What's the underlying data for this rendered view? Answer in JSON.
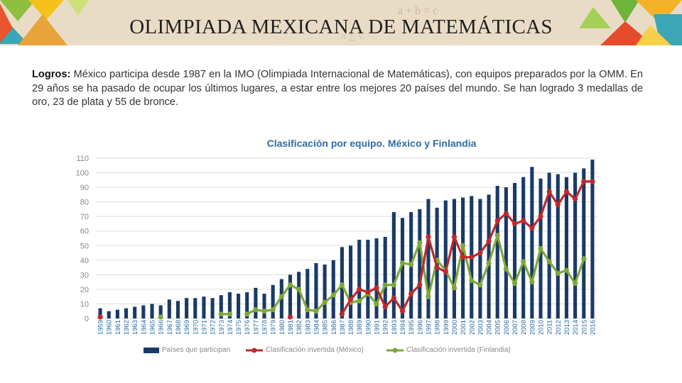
{
  "page": {
    "title": "OLIMPIADA MEXICANA DE MATEMÁTICAS",
    "description_label": "Logros:",
    "description_text": " México participa desde 1987 en la IMO (Olimpiada Internacional de Matemáticas), con equipos preparados por la OMM. En 29 años se ha pasado de ocupar los últimos lugares, a estar entre los mejores 20 países del mundo. Se han logrado 3 medallas de oro, 23 de plata y 55 de bronce."
  },
  "chart_data": {
    "type": "bar",
    "title": "Clasificación por equipo. México y Finlandia",
    "ylim": [
      0,
      110
    ],
    "yticks": [
      0,
      10,
      20,
      30,
      40,
      50,
      60,
      70,
      80,
      90,
      100,
      110
    ],
    "grid": true,
    "legend_position": "bottom",
    "colors": {
      "bars": "#1a3a66",
      "mexico": "#c0282d",
      "finland": "#7ca83b",
      "grid": "#dddddd",
      "ticks": "#888888"
    },
    "categories": [
      "1959",
      "1960",
      "1961",
      "1962",
      "1963",
      "1964",
      "1965",
      "1966",
      "1967",
      "1968",
      "1969",
      "1970",
      "1971",
      "1972",
      "1973",
      "1974",
      "1975",
      "1976",
      "1977",
      "1978",
      "1979",
      "1980",
      "1981",
      "1982",
      "1983",
      "1984",
      "1985",
      "1986",
      "1987",
      "1988",
      "1989",
      "1990",
      "1991",
      "1992",
      "1993",
      "1994",
      "1995",
      "1996",
      "1997",
      "1998",
      "1999",
      "2000",
      "2001",
      "2002",
      "2003",
      "2004",
      "2005",
      "2006",
      "2007",
      "2008",
      "2009",
      "2010",
      "2011",
      "2012",
      "2013",
      "2014",
      "2015",
      "2016"
    ],
    "series": [
      {
        "name": "Países que participan",
        "kind": "bar",
        "values": [
          7,
          5,
          6,
          7,
          8,
          9,
          10,
          9,
          13,
          12,
          14,
          14,
          15,
          14,
          16,
          18,
          17,
          18,
          21,
          17,
          23,
          27,
          30,
          32,
          34,
          38,
          37,
          40,
          49,
          50,
          54,
          54,
          55,
          56,
          73,
          69,
          73,
          75,
          82,
          76,
          81,
          82,
          83,
          84,
          82,
          85,
          91,
          90,
          93,
          97,
          104,
          96,
          100,
          99,
          97,
          100,
          103,
          109
        ]
      },
      {
        "name": "Clasificación invertida (México)",
        "kind": "line",
        "values": [
          1,
          null,
          null,
          null,
          null,
          null,
          null,
          null,
          null,
          null,
          null,
          null,
          null,
          null,
          null,
          null,
          null,
          null,
          null,
          null,
          null,
          null,
          1,
          null,
          null,
          null,
          null,
          null,
          3,
          13,
          20,
          18,
          21,
          8,
          14,
          5,
          17,
          23,
          56,
          35,
          32,
          56,
          42,
          42,
          45,
          53,
          67,
          72,
          65,
          67,
          62,
          70,
          87,
          78,
          87,
          82,
          94,
          94
        ]
      },
      {
        "name": "Clasificación invertida (Finlandia)",
        "kind": "line",
        "values": [
          null,
          null,
          null,
          null,
          null,
          null,
          null,
          1,
          null,
          null,
          null,
          null,
          null,
          null,
          3,
          3,
          null,
          3,
          6,
          5,
          6,
          15,
          23,
          20,
          6,
          5,
          11,
          16,
          23,
          11,
          12,
          17,
          10,
          23,
          23,
          38,
          37,
          52,
          15,
          40,
          33,
          21,
          50,
          26,
          23,
          38,
          57,
          34,
          24,
          39,
          25,
          48,
          39,
          31,
          33,
          24,
          41,
          null
        ]
      }
    ]
  }
}
